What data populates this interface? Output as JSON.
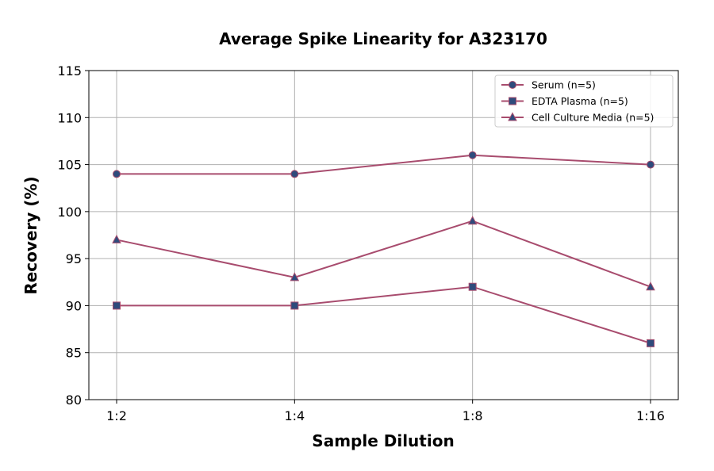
{
  "chart_data": {
    "type": "line",
    "title": "Average Spike Linearity for A323170",
    "xlabel": "Sample Dilution",
    "ylabel": "Recovery (%)",
    "categories": [
      "1:2",
      "1:4",
      "1:8",
      "1:16"
    ],
    "ylim": [
      80,
      115
    ],
    "yticks": [
      80,
      85,
      90,
      95,
      100,
      105,
      110,
      115
    ],
    "grid": true,
    "legend_position": "top-right",
    "line_color": "#a84c6e",
    "marker_color": "#2f4b7c",
    "series": [
      {
        "name": "Serum (n=5)",
        "marker": "circle",
        "values": [
          104,
          104,
          106,
          105
        ]
      },
      {
        "name": "EDTA Plasma (n=5)",
        "marker": "square",
        "values": [
          90,
          90,
          92,
          86
        ]
      },
      {
        "name": "Cell Culture Media (n=5)",
        "marker": "triangle",
        "values": [
          97,
          93,
          99,
          92
        ]
      }
    ]
  }
}
